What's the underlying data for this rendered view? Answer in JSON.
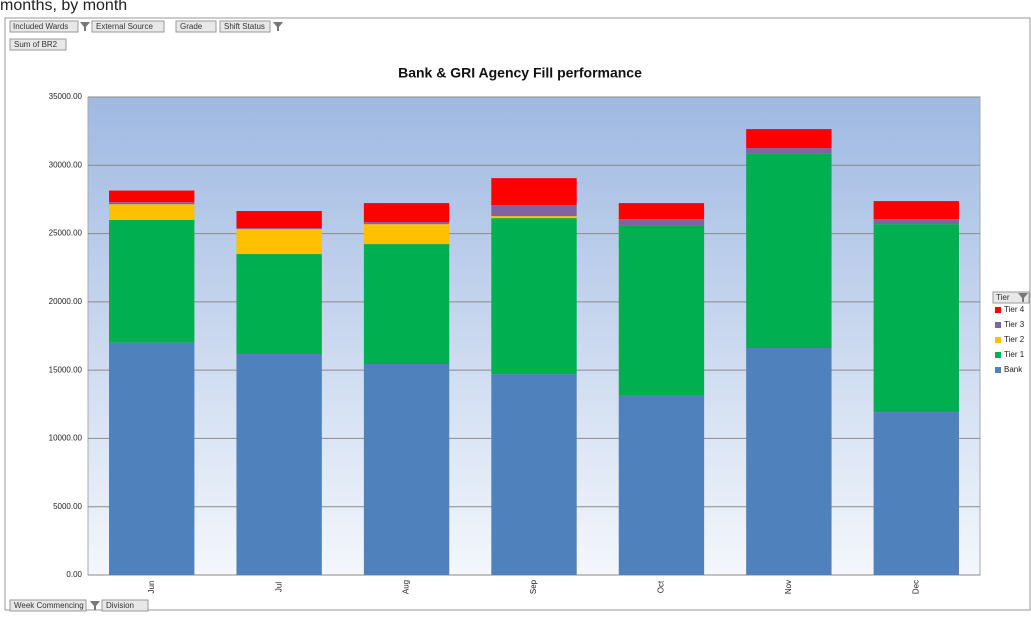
{
  "caption": "months, by month",
  "filters": [
    "Included Wards",
    "External Source",
    "Grade",
    "Shift Status"
  ],
  "value_field": "Sum of BR2",
  "axis_fields": [
    "Week Commencing",
    "Division"
  ],
  "chart_data": {
    "type": "stacked_bar",
    "title": "Bank & GRI Agency Fill performance",
    "legend_title": "Tier",
    "legend": "right",
    "grid": true,
    "categories": [
      "Jun",
      "Jul",
      "Aug",
      "Sep",
      "Oct",
      "Nov",
      "Dec"
    ],
    "ylim": [
      0,
      35000
    ],
    "yticks": [
      {
        "value": 0,
        "label": "0.00"
      },
      {
        "value": 5000,
        "label": "5000.00"
      },
      {
        "value": 10000,
        "label": "10000.00"
      },
      {
        "value": 15000,
        "label": "15000.00"
      },
      {
        "value": 20000,
        "label": "20000.00"
      },
      {
        "value": 25000,
        "label": "25000.00"
      },
      {
        "value": 30000,
        "label": "30000.00"
      },
      {
        "value": 35000,
        "label": "35000.00"
      }
    ],
    "series": [
      {
        "name": "Bank",
        "color": "#4f81bd",
        "values": [
          17000,
          16180,
          15450,
          14710,
          13180,
          16620,
          11930
        ]
      },
      {
        "name": "Tier 1",
        "color": "#00b050",
        "values": [
          9000,
          7320,
          8780,
          11420,
          12440,
          14270,
          13760
        ]
      },
      {
        "name": "Tier 2",
        "color": "#ffc000",
        "values": [
          1150,
          1830,
          1460,
          150,
          0,
          0,
          0
        ]
      },
      {
        "name": "Tier 3",
        "color": "#8064a2",
        "values": [
          150,
          70,
          150,
          800,
          440,
          370,
          370
        ]
      },
      {
        "name": "Tier 4",
        "color": "#ff0000",
        "values": [
          850,
          1250,
          1390,
          1980,
          1170,
          1390,
          1320
        ]
      }
    ]
  }
}
